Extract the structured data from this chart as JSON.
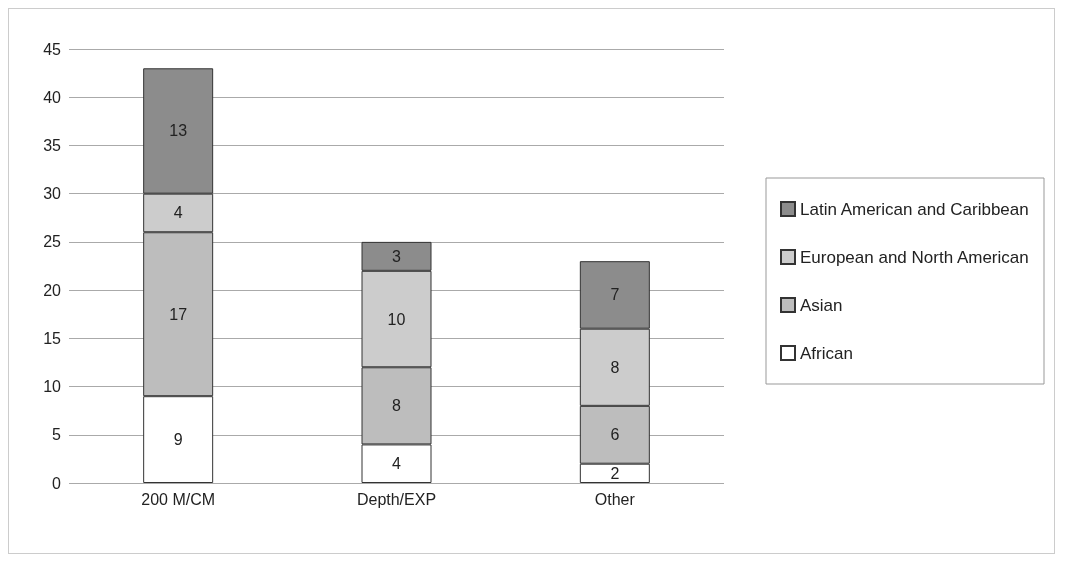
{
  "chart_data": {
    "type": "bar",
    "stacked": true,
    "categories": [
      "200 M/CM",
      "Depth/EXP",
      "Other"
    ],
    "series": [
      {
        "name": "African",
        "color": "#ffffff",
        "values": [
          9,
          4,
          2
        ]
      },
      {
        "name": "Asian",
        "color": "#bdbdbd",
        "values": [
          17,
          8,
          6
        ]
      },
      {
        "name": "European and North American",
        "color": "#cccccc",
        "values": [
          4,
          10,
          8
        ]
      },
      {
        "name": "Latin American and Caribbean",
        "color": "#8c8c8c",
        "values": [
          13,
          3,
          7
        ]
      }
    ],
    "ylim": [
      0,
      45
    ],
    "yticks": [
      0,
      5,
      10,
      15,
      20,
      25,
      30,
      35,
      40,
      45
    ],
    "grid": "y",
    "legend": "right",
    "data_labels": true
  }
}
